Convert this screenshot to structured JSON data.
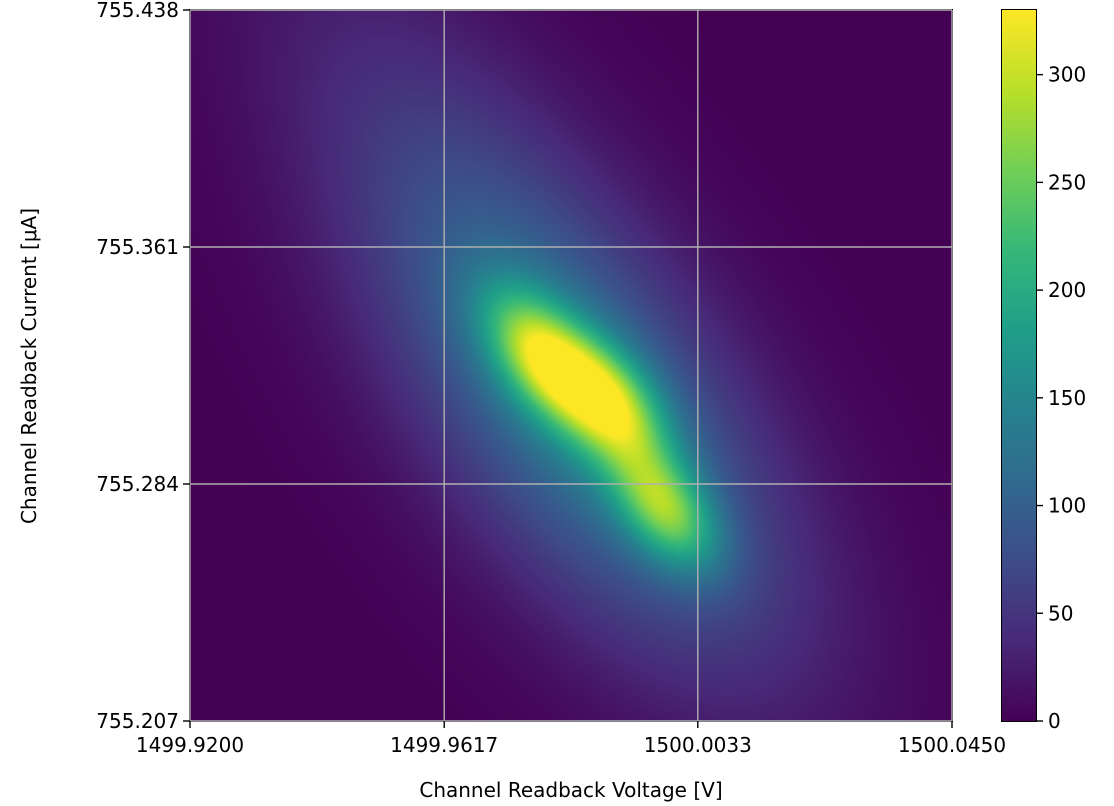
{
  "chart_data": {
    "type": "heatmap",
    "xlabel": "Channel Readback Voltage [V]",
    "ylabel": "Channel Readback Current [μA]",
    "xlim": [
      1499.92,
      1500.045
    ],
    "ylim": [
      755.207,
      755.438
    ],
    "x_ticks": [
      "1499.9200",
      "1499.9617",
      "1500.0033",
      "1500.0450"
    ],
    "y_ticks": [
      "755.207",
      "755.284",
      "755.361",
      "755.438"
    ],
    "grid": true,
    "colormap": "viridis",
    "colorbar": {
      "range": [
        0,
        330
      ],
      "ticks": [
        "0",
        "50",
        "100",
        "150",
        "200",
        "250",
        "300"
      ]
    },
    "density_peaks": [
      {
        "x": 1499.978,
        "y": 755.325,
        "value": 330
      },
      {
        "x": 1499.989,
        "y": 755.31,
        "value": 330
      },
      {
        "x": 1499.998,
        "y": 755.276,
        "value": 320
      }
    ]
  }
}
